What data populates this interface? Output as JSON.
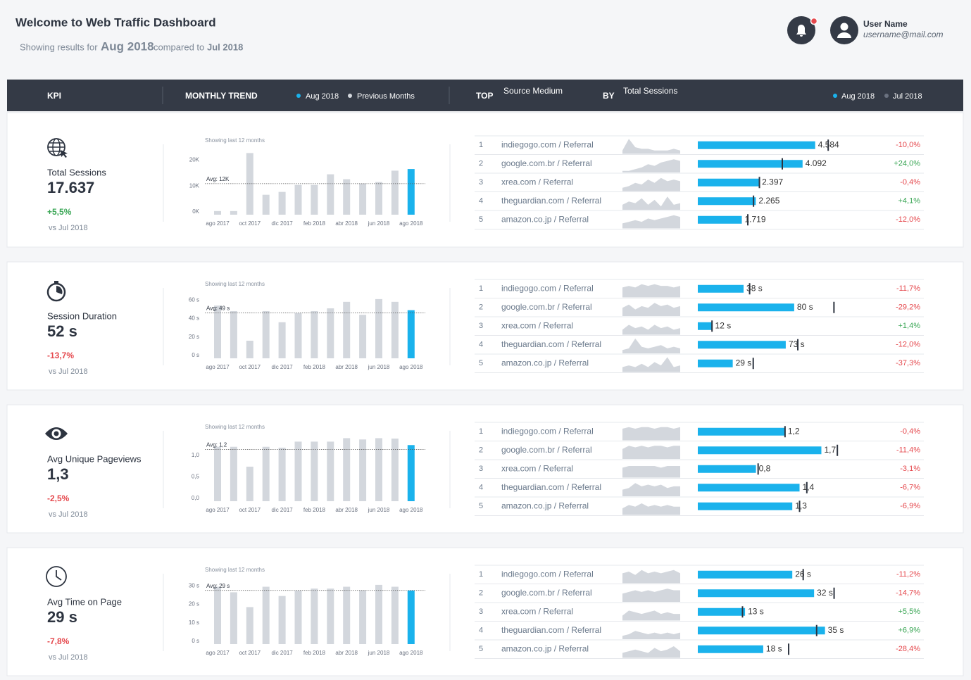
{
  "header": {
    "title": "Welcome to Web Traffic Dashboard",
    "showing": "Showing results for",
    "current": "Aug 2018",
    "compared": "compared to",
    "previous": "Jul 2018"
  },
  "user": {
    "name": "User Name",
    "email": "username@mail.com"
  },
  "columns": {
    "kpi": "KPI",
    "trend": "MONTHLY TREND",
    "trend_legend": [
      "Aug 2018",
      "Previous Months"
    ],
    "top": "TOP",
    "dimension": "Source Medium",
    "by": "BY",
    "metric": "Total Sessions",
    "top_legend": [
      "Aug 2018",
      "Jul 2018"
    ]
  },
  "kpis": [
    {
      "label": "Total Sessions",
      "value": "17.637",
      "change": "+5,5%",
      "vs": "vs Jul 2018",
      "trend": {
        "type": "bar",
        "note": "Showing last 12 months",
        "categories": [
          "ago 2017",
          null,
          "oct 2017",
          null,
          "dic 2017",
          null,
          "feb 2018",
          null,
          "abr 2018",
          null,
          "jun 2018",
          null,
          "ago 2018"
        ],
        "values": [
          1400,
          1400,
          23800,
          7700,
          8800,
          11500,
          11500,
          15600,
          13700,
          12000,
          12600,
          17000,
          17637
        ],
        "ylim": [
          0,
          25000
        ],
        "yticks": [
          {
            "value": 0,
            "label": "0K"
          },
          {
            "value": 10000,
            "label": "10K"
          },
          {
            "value": 20000,
            "label": "20K"
          }
        ],
        "avg": {
          "value": 12000,
          "label": "Avg: 12K"
        }
      },
      "top": {
        "xlim": [
          0,
          8800
        ],
        "spark_ylim": [
          0,
          10
        ],
        "rows": [
          {
            "rank": 1,
            "source": "indiegogo.com / Referral",
            "spark": [
              2,
              9,
              4,
              3,
              3,
              2,
              2,
              2,
              3,
              2
            ],
            "value": 4584,
            "value_label": "4.584",
            "previous": 5093,
            "change": "-10,0%"
          },
          {
            "rank": 2,
            "source": "google.com.br / Referral",
            "spark": [
              1,
              1,
              2,
              3,
              5,
              4,
              6,
              7,
              8,
              7
            ],
            "value": 4092,
            "value_label": "4.092",
            "previous": 3300,
            "change": "+24,0%"
          },
          {
            "rank": 3,
            "source": "xrea.com / Referral",
            "spark": [
              2,
              3,
              5,
              4,
              7,
              5,
              8,
              6,
              7,
              6
            ],
            "value": 2397,
            "value_label": "2.397",
            "previous": 2407,
            "change": "-0,4%"
          },
          {
            "rank": 4,
            "source": "theguardian.com / Referral",
            "spark": [
              3,
              5,
              4,
              7,
              3,
              6,
              2,
              8,
              3,
              4
            ],
            "value": 2265,
            "value_label": "2.265",
            "previous": 2176,
            "change": "+4,1%"
          },
          {
            "rank": 5,
            "source": "amazon.co.jp / Referral",
            "spark": [
              3,
              4,
              5,
              4,
              6,
              5,
              6,
              7,
              8,
              7
            ],
            "value": 1719,
            "value_label": "1.719",
            "previous": 1953,
            "change": "-12,0%"
          }
        ]
      }
    },
    {
      "label": "Session Duration",
      "value": "52 s",
      "change": "-13,7%",
      "vs": "vs Jul 2018",
      "trend": {
        "type": "bar",
        "note": "Showing last 12 months",
        "categories": [
          "ago 2017",
          null,
          "oct 2017",
          null,
          "dic 2017",
          null,
          "feb 2018",
          null,
          "abr 2018",
          null,
          "jun 2018",
          null,
          "ago 2018"
        ],
        "values": [
          57,
          51,
          19,
          51,
          39,
          49,
          51,
          54,
          61,
          47,
          64,
          61,
          52
        ],
        "ylim": [
          0,
          70
        ],
        "yticks": [
          {
            "value": 0,
            "label": "0 s"
          },
          {
            "value": 20,
            "label": "20 s"
          },
          {
            "value": 40,
            "label": "40 s"
          },
          {
            "value": 60,
            "label": "60 s"
          }
        ],
        "avg": {
          "value": 49,
          "label": "Avg: 49 s"
        }
      },
      "top": {
        "xlim": [
          0,
          187
        ],
        "spark_ylim": [
          0,
          10
        ],
        "rows": [
          {
            "rank": 1,
            "source": "indiegogo.com / Referral",
            "spark": [
              6,
              7,
              6,
              8,
              7,
              8,
              7,
              7,
              6,
              7
            ],
            "value": 38,
            "value_label": "38 s",
            "previous": 43,
            "change": "-11,7%"
          },
          {
            "rank": 2,
            "source": "google.com.br / Referral",
            "spark": [
              5,
              7,
              4,
              6,
              5,
              8,
              6,
              7,
              5,
              6
            ],
            "value": 80,
            "value_label": "80 s",
            "previous": 113,
            "change": "-29,2%"
          },
          {
            "rank": 3,
            "source": "xrea.com / Referral",
            "spark": [
              3,
              6,
              4,
              5,
              3,
              6,
              4,
              5,
              3,
              4
            ],
            "value": 12,
            "value_label": "12 s",
            "previous": 11.8,
            "change": "+1,4%"
          },
          {
            "rank": 4,
            "source": "theguardian.com / Referral",
            "spark": [
              2,
              3,
              9,
              4,
              3,
              4,
              5,
              3,
              4,
              3
            ],
            "value": 73,
            "value_label": "73 s",
            "previous": 83,
            "change": "-12,0%"
          },
          {
            "rank": 5,
            "source": "amazon.co.jp / Referral",
            "spark": [
              3,
              4,
              3,
              5,
              3,
              6,
              4,
              9,
              3,
              4
            ],
            "value": 29,
            "value_label": "29 s",
            "previous": 46,
            "change": "-37,3%"
          }
        ]
      }
    },
    {
      "label": "Avg Unique Pageviews",
      "value": "1,3",
      "change": "-2,5%",
      "vs": "vs Jul 2018",
      "trend": {
        "type": "bar",
        "note": "Showing last 12 months",
        "categories": [
          "ago 2017",
          null,
          "oct 2017",
          null,
          "dic 2017",
          null,
          "feb 2018",
          null,
          "abr 2018",
          null,
          "jun 2018",
          null,
          "ago 2018"
        ],
        "values": [
          1.26,
          1.26,
          0.8,
          1.26,
          1.24,
          1.38,
          1.38,
          1.38,
          1.46,
          1.43,
          1.46,
          1.45,
          1.3
        ],
        "ylim": [
          0,
          1.5
        ],
        "yticks": [
          {
            "value": 0,
            "label": "0,0"
          },
          {
            "value": 0.5,
            "label": "0,5"
          },
          {
            "value": 1,
            "label": "1,0"
          }
        ],
        "avg": {
          "value": 1.2,
          "label": "Avg: 1,2"
        }
      },
      "top": {
        "xlim": [
          0,
          3.1
        ],
        "spark_ylim": [
          0,
          10
        ],
        "rows": [
          {
            "rank": 1,
            "source": "indiegogo.com / Referral",
            "spark": [
              7,
              8,
              7,
              8,
              8,
              7,
              8,
              8,
              7,
              8
            ],
            "value": 1.2,
            "value_label": "1,2",
            "previous": 1.2,
            "change": "-0,4%"
          },
          {
            "rank": 2,
            "source": "google.com.br / Referral",
            "spark": [
              6,
              8,
              7,
              8,
              7,
              8,
              8,
              7,
              8,
              8
            ],
            "value": 1.7,
            "value_label": "1,7",
            "previous": 1.92,
            "change": "-11,4%"
          },
          {
            "rank": 3,
            "source": "xrea.com / Referral",
            "spark": [
              6,
              7,
              7,
              7,
              7,
              7,
              6,
              7,
              7,
              7
            ],
            "value": 0.8,
            "value_label": "0,8",
            "previous": 0.83,
            "change": "-3,1%"
          },
          {
            "rank": 4,
            "source": "theguardian.com / Referral",
            "spark": [
              4,
              5,
              8,
              6,
              7,
              6,
              7,
              5,
              6,
              6
            ],
            "value": 1.4,
            "value_label": "1,4",
            "previous": 1.5,
            "change": "-6,7%"
          },
          {
            "rank": 5,
            "source": "amazon.co.jp / Referral",
            "spark": [
              4,
              6,
              5,
              7,
              5,
              6,
              5,
              6,
              5,
              5
            ],
            "value": 1.3,
            "value_label": "1,3",
            "previous": 1.4,
            "change": "-6,9%"
          }
        ]
      }
    },
    {
      "label": "Avg Time on Page",
      "value": "29 s",
      "change": "-7,8%",
      "vs": "vs Jul 2018",
      "trend": {
        "type": "bar",
        "note": "Showing last 12 months",
        "categories": [
          "ago 2017",
          null,
          "oct 2017",
          null,
          "dic 2017",
          null,
          "feb 2018",
          null,
          "abr 2018",
          null,
          "jun 2018",
          null,
          "ago 2018"
        ],
        "values": [
          31,
          28,
          20,
          31,
          26,
          29,
          30,
          30,
          31,
          29,
          32,
          31,
          29
        ],
        "ylim": [
          0,
          35
        ],
        "yticks": [
          {
            "value": 0,
            "label": "0 s"
          },
          {
            "value": 10,
            "label": "10 s"
          },
          {
            "value": 20,
            "label": "20 s"
          },
          {
            "value": 30,
            "label": "30 s"
          }
        ],
        "avg": {
          "value": 29,
          "label": "Avg: 29 s"
        }
      },
      "top": {
        "xlim": [
          0,
          62
        ],
        "spark_ylim": [
          0,
          10
        ],
        "rows": [
          {
            "rank": 1,
            "source": "indiegogo.com / Referral",
            "spark": [
              6,
              7,
              5,
              8,
              6,
              7,
              6,
              7,
              8,
              6
            ],
            "value": 26,
            "value_label": "26 s",
            "previous": 29,
            "change": "-11,2%"
          },
          {
            "rank": 2,
            "source": "google.com.br / Referral",
            "spark": [
              5,
              6,
              7,
              6,
              7,
              6,
              7,
              8,
              7,
              7
            ],
            "value": 32,
            "value_label": "32 s",
            "previous": 37.5,
            "change": "-14,7%"
          },
          {
            "rank": 3,
            "source": "xrea.com / Referral",
            "spark": [
              3,
              6,
              5,
              4,
              5,
              6,
              4,
              5,
              4,
              4
            ],
            "value": 13,
            "value_label": "13 s",
            "previous": 12.3,
            "change": "+5,5%"
          },
          {
            "rank": 4,
            "source": "theguardian.com / Referral",
            "spark": [
              2,
              3,
              5,
              4,
              3,
              4,
              3,
              4,
              3,
              4
            ],
            "value": 35,
            "value_label": "35 s",
            "previous": 32.7,
            "change": "+6,9%"
          },
          {
            "rank": 5,
            "source": "amazon.co.jp / Referral",
            "spark": [
              3,
              4,
              5,
              4,
              3,
              6,
              4,
              5,
              7,
              4
            ],
            "value": 18,
            "value_label": "18 s",
            "previous": 25,
            "change": "-28,4%"
          }
        ]
      }
    }
  ]
}
